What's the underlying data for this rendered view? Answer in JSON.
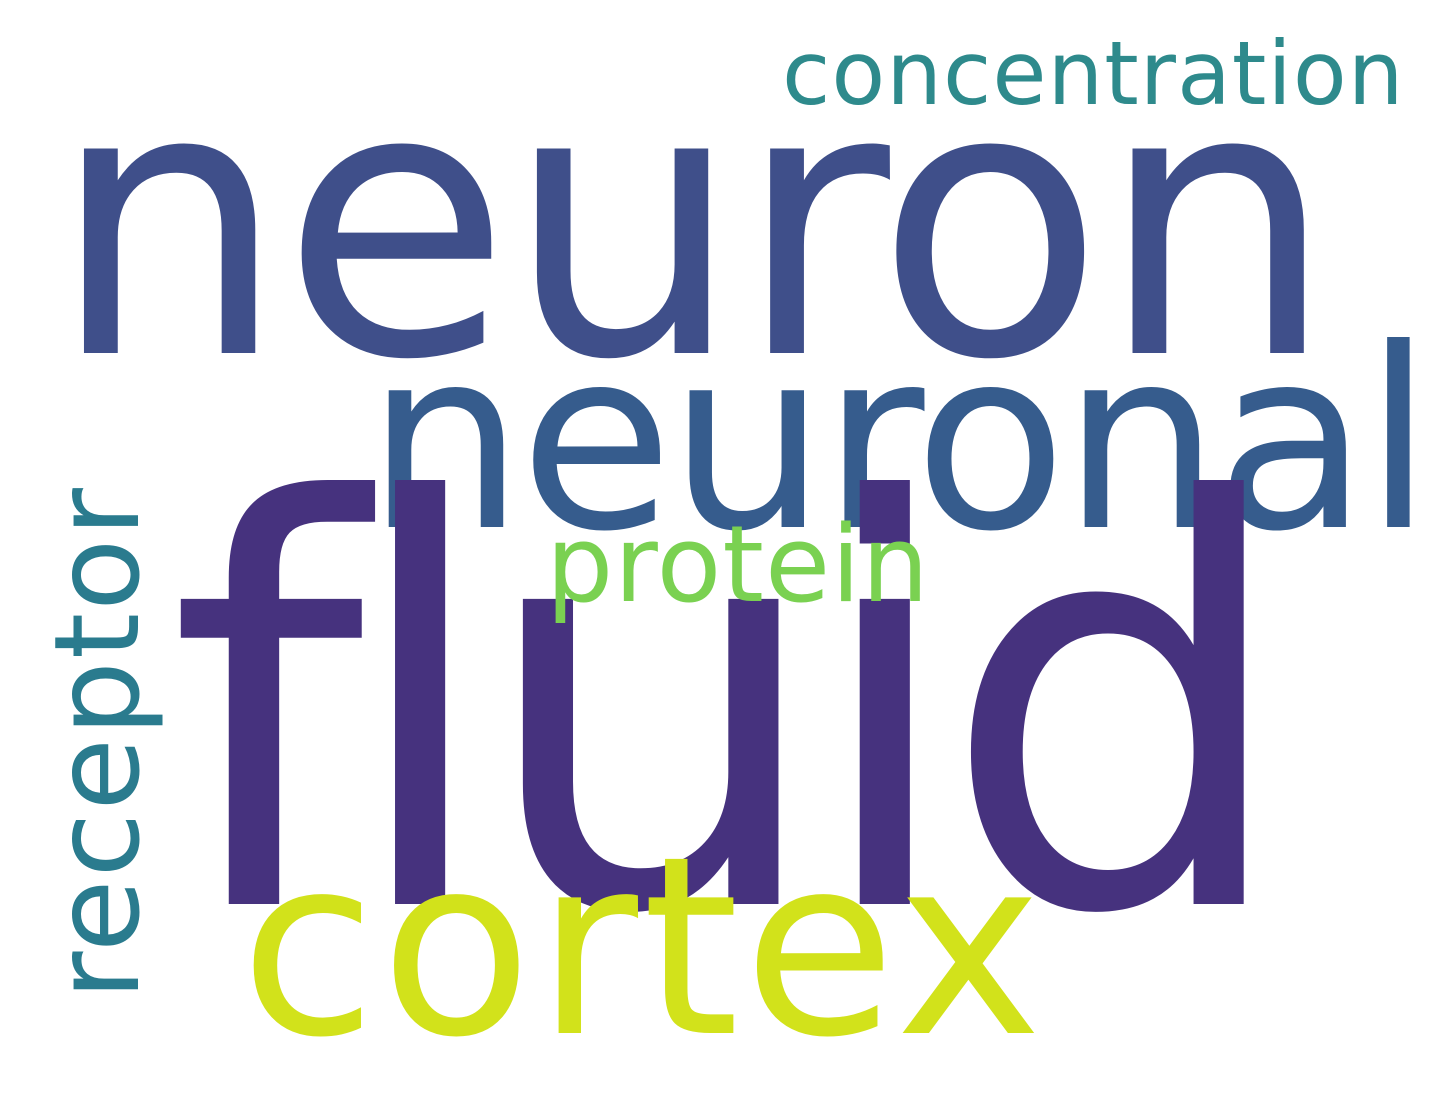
{
  "word_cloud": {
    "background_color": "#ffffff",
    "words": [
      {
        "text": "neuron",
        "color": "#3f4f8a"
      },
      {
        "text": "concentration",
        "color": "#2e8a8c"
      },
      {
        "text": "neuronal",
        "color": "#365c8d"
      },
      {
        "text": "fluid",
        "color": "#46327e"
      },
      {
        "text": "protein",
        "color": "#7ad151"
      },
      {
        "text": "cortex",
        "color": "#d2e21b"
      },
      {
        "text": "receptor",
        "color": "#2a7b8e"
      }
    ]
  }
}
